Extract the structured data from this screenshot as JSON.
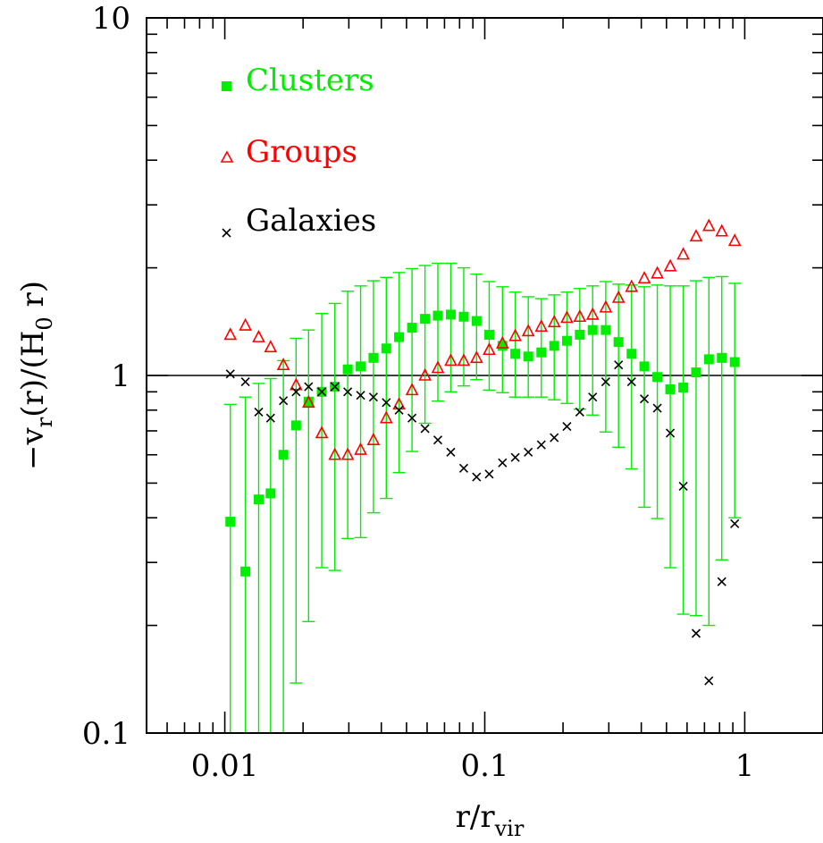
{
  "chart_data": {
    "type": "scatter",
    "x_scale": "log",
    "y_scale": "log",
    "xlim": [
      0.005,
      2
    ],
    "ylim": [
      0.1,
      10
    ],
    "x_ticks": [
      0.01,
      0.1,
      1
    ],
    "x_tick_labels": [
      "0.01",
      "0.1",
      "1"
    ],
    "y_ticks": [
      0.1,
      1,
      10
    ],
    "y_tick_labels": [
      "0.1",
      "1",
      "10"
    ],
    "xlabel": {
      "main": "r/r",
      "sub": "vir"
    },
    "ylabel": {
      "prefix": "−v",
      "sub1": "r",
      "mid": "(r)/(H",
      "sub2": "0",
      "suffix": " r)"
    },
    "reference_line_y": 1,
    "legend_position": "top-left",
    "grid": false,
    "series": [
      {
        "name": "Clusters",
        "color": "#00ee00",
        "marker": "filled-square",
        "x": [
          0.0105,
          0.012,
          0.0135,
          0.015,
          0.0168,
          0.0188,
          0.021,
          0.0236,
          0.0265,
          0.0297,
          0.0333,
          0.0373,
          0.0418,
          0.0468,
          0.0525,
          0.0589,
          0.066,
          0.074,
          0.083,
          0.093,
          0.104,
          0.117,
          0.131,
          0.147,
          0.165,
          0.185,
          0.207,
          0.232,
          0.26,
          0.292,
          0.327,
          0.367,
          0.411,
          0.461,
          0.517,
          0.58,
          0.65,
          0.728,
          0.816,
          0.915
        ],
        "y": [
          0.39,
          0.283,
          0.45,
          0.468,
          0.6,
          0.725,
          0.845,
          0.9,
          0.93,
          1.04,
          1.06,
          1.12,
          1.19,
          1.28,
          1.36,
          1.44,
          1.47,
          1.48,
          1.46,
          1.42,
          1.3,
          1.21,
          1.15,
          1.13,
          1.16,
          1.21,
          1.25,
          1.3,
          1.34,
          1.34,
          1.24,
          1.15,
          1.06,
          0.99,
          0.915,
          0.925,
          1.02,
          1.11,
          1.12,
          1.09
        ],
        "y_err_high": [
          0.83,
          0.87,
          0.95,
          0.98,
          1.1,
          1.27,
          1.34,
          1.49,
          1.59,
          1.72,
          1.78,
          1.84,
          1.88,
          1.94,
          1.99,
          2.03,
          2.06,
          2.06,
          2.0,
          1.92,
          1.83,
          1.77,
          1.71,
          1.66,
          1.64,
          1.68,
          1.71,
          1.75,
          1.78,
          1.83,
          1.8,
          1.79,
          1.77,
          1.79,
          1.78,
          1.78,
          1.84,
          1.88,
          1.89,
          1.81
        ],
        "y_err_low": [
          0.1,
          0.1,
          0.1,
          0.1,
          0.1,
          0.138,
          0.205,
          0.29,
          0.285,
          0.35,
          0.352,
          0.413,
          0.453,
          0.535,
          0.613,
          0.735,
          0.848,
          0.9,
          0.935,
          0.973,
          0.91,
          0.895,
          0.87,
          0.87,
          0.87,
          0.855,
          0.835,
          0.805,
          0.775,
          0.695,
          0.63,
          0.548,
          0.428,
          0.398,
          0.29,
          0.215,
          0.213,
          0.2,
          0.305,
          0.4
        ]
      },
      {
        "name": "Groups",
        "color": "#ff0000",
        "marker": "open-triangle",
        "x": [
          0.0105,
          0.012,
          0.0135,
          0.015,
          0.0168,
          0.0188,
          0.021,
          0.0236,
          0.0265,
          0.0297,
          0.0333,
          0.0373,
          0.0418,
          0.0468,
          0.0525,
          0.0589,
          0.066,
          0.074,
          0.083,
          0.093,
          0.104,
          0.117,
          0.131,
          0.147,
          0.165,
          0.185,
          0.207,
          0.232,
          0.26,
          0.292,
          0.327,
          0.367,
          0.411,
          0.461,
          0.517,
          0.58,
          0.65,
          0.728,
          0.816,
          0.915
        ],
        "y": [
          1.3,
          1.38,
          1.28,
          1.2,
          1.07,
          0.94,
          0.84,
          0.69,
          0.6,
          0.6,
          0.62,
          0.66,
          0.76,
          0.83,
          0.91,
          1.0,
          1.05,
          1.1,
          1.1,
          1.12,
          1.18,
          1.23,
          1.29,
          1.33,
          1.37,
          1.41,
          1.45,
          1.46,
          1.48,
          1.55,
          1.65,
          1.77,
          1.87,
          1.93,
          2.02,
          2.18,
          2.45,
          2.62,
          2.53,
          2.38
        ]
      },
      {
        "name": "Galaxies",
        "color": "#000000",
        "marker": "cross",
        "x": [
          0.0105,
          0.012,
          0.0135,
          0.015,
          0.0168,
          0.0188,
          0.021,
          0.0236,
          0.0265,
          0.0297,
          0.0333,
          0.0373,
          0.0418,
          0.0468,
          0.0525,
          0.0589,
          0.066,
          0.074,
          0.083,
          0.093,
          0.104,
          0.117,
          0.131,
          0.147,
          0.165,
          0.185,
          0.207,
          0.232,
          0.26,
          0.292,
          0.327,
          0.367,
          0.411,
          0.461,
          0.517,
          0.58,
          0.65,
          0.728,
          0.816,
          0.915
        ],
        "y": [
          1.01,
          0.96,
          0.79,
          0.76,
          0.85,
          0.9,
          0.93,
          0.9,
          0.93,
          0.9,
          0.88,
          0.87,
          0.84,
          0.8,
          0.76,
          0.71,
          0.66,
          0.61,
          0.55,
          0.52,
          0.53,
          0.57,
          0.59,
          0.61,
          0.64,
          0.67,
          0.72,
          0.79,
          0.87,
          0.96,
          1.07,
          0.96,
          0.86,
          0.81,
          0.69,
          0.49,
          0.19,
          0.14,
          0.265,
          0.385
        ]
      }
    ]
  }
}
